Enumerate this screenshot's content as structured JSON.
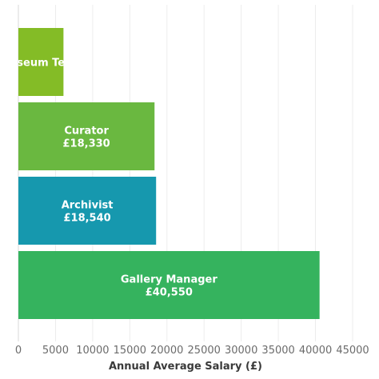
{
  "chart_data": {
    "type": "bar",
    "orientation": "horizontal",
    "title": "",
    "xlabel": "Annual Average Salary (£)",
    "ylabel": "",
    "xlim": [
      0,
      45000
    ],
    "xticks": [
      0,
      5000,
      10000,
      15000,
      20000,
      25000,
      30000,
      35000,
      40000,
      45000
    ],
    "xtick_labels": [
      "0",
      "5000",
      "10000",
      "15000",
      "20000",
      "25000",
      "30000",
      "35000",
      "40000",
      "45000"
    ],
    "grid": "vertical",
    "categories": [
      "Museum Technician",
      "Curator",
      "Archivist",
      "Gallery Manager"
    ],
    "values": [
      6070,
      18330,
      18540,
      40550
    ],
    "value_labels": [
      "",
      "£18,330",
      "£18,540",
      "£40,550"
    ],
    "visible_labels": [
      "seum Te",
      "Curator",
      "Archivist",
      "Gallery Manager"
    ],
    "colors": [
      "#84bc26",
      "#6ab840",
      "#1698ae",
      "#35b35e"
    ]
  }
}
